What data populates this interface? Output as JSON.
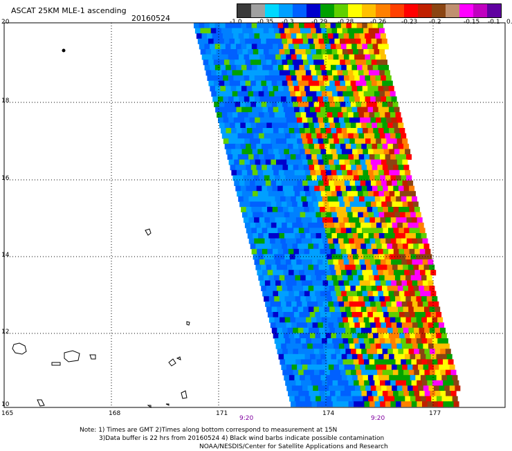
{
  "header": {
    "title": "ASCAT 25KM MLE-1 ascending",
    "date": "20160524"
  },
  "colorbar": {
    "colors": [
      "#3a3a3a",
      "#a0a0a0",
      "#00d8ff",
      "#00a0ff",
      "#0060ff",
      "#0000cc",
      "#00a000",
      "#60d000",
      "#ffff00",
      "#ffc000",
      "#ff8000",
      "#ff4000",
      "#ff0000",
      "#c02000",
      "#8b4513",
      "#c09070",
      "#ff00ff",
      "#c000c0",
      "#6000a0"
    ],
    "labels": [
      "-1.0",
      "-0.35",
      "-0.3",
      "-0.29",
      "-0.28",
      "-0.26",
      "-0.23",
      "-0.2",
      "-0.15",
      "-0.1",
      "0.0"
    ]
  },
  "map": {
    "lon_labels": [
      "165",
      "168",
      "171",
      "174",
      "177"
    ],
    "lat_labels": [
      "20",
      "18",
      "16",
      "14",
      "12",
      "10"
    ],
    "pass_times": [
      "9:20",
      "9:20"
    ]
  },
  "notes": {
    "line1": "Note: 1) Times are GMT 2)Times along bottom correspond to measurement at 15N",
    "line2": "3)Data buffer is 22 hrs from 20160524 4) Black wind barbs indicate possible contamination",
    "line3": "NOAA/NESDIS/Center for Satellite Applications and Research"
  }
}
